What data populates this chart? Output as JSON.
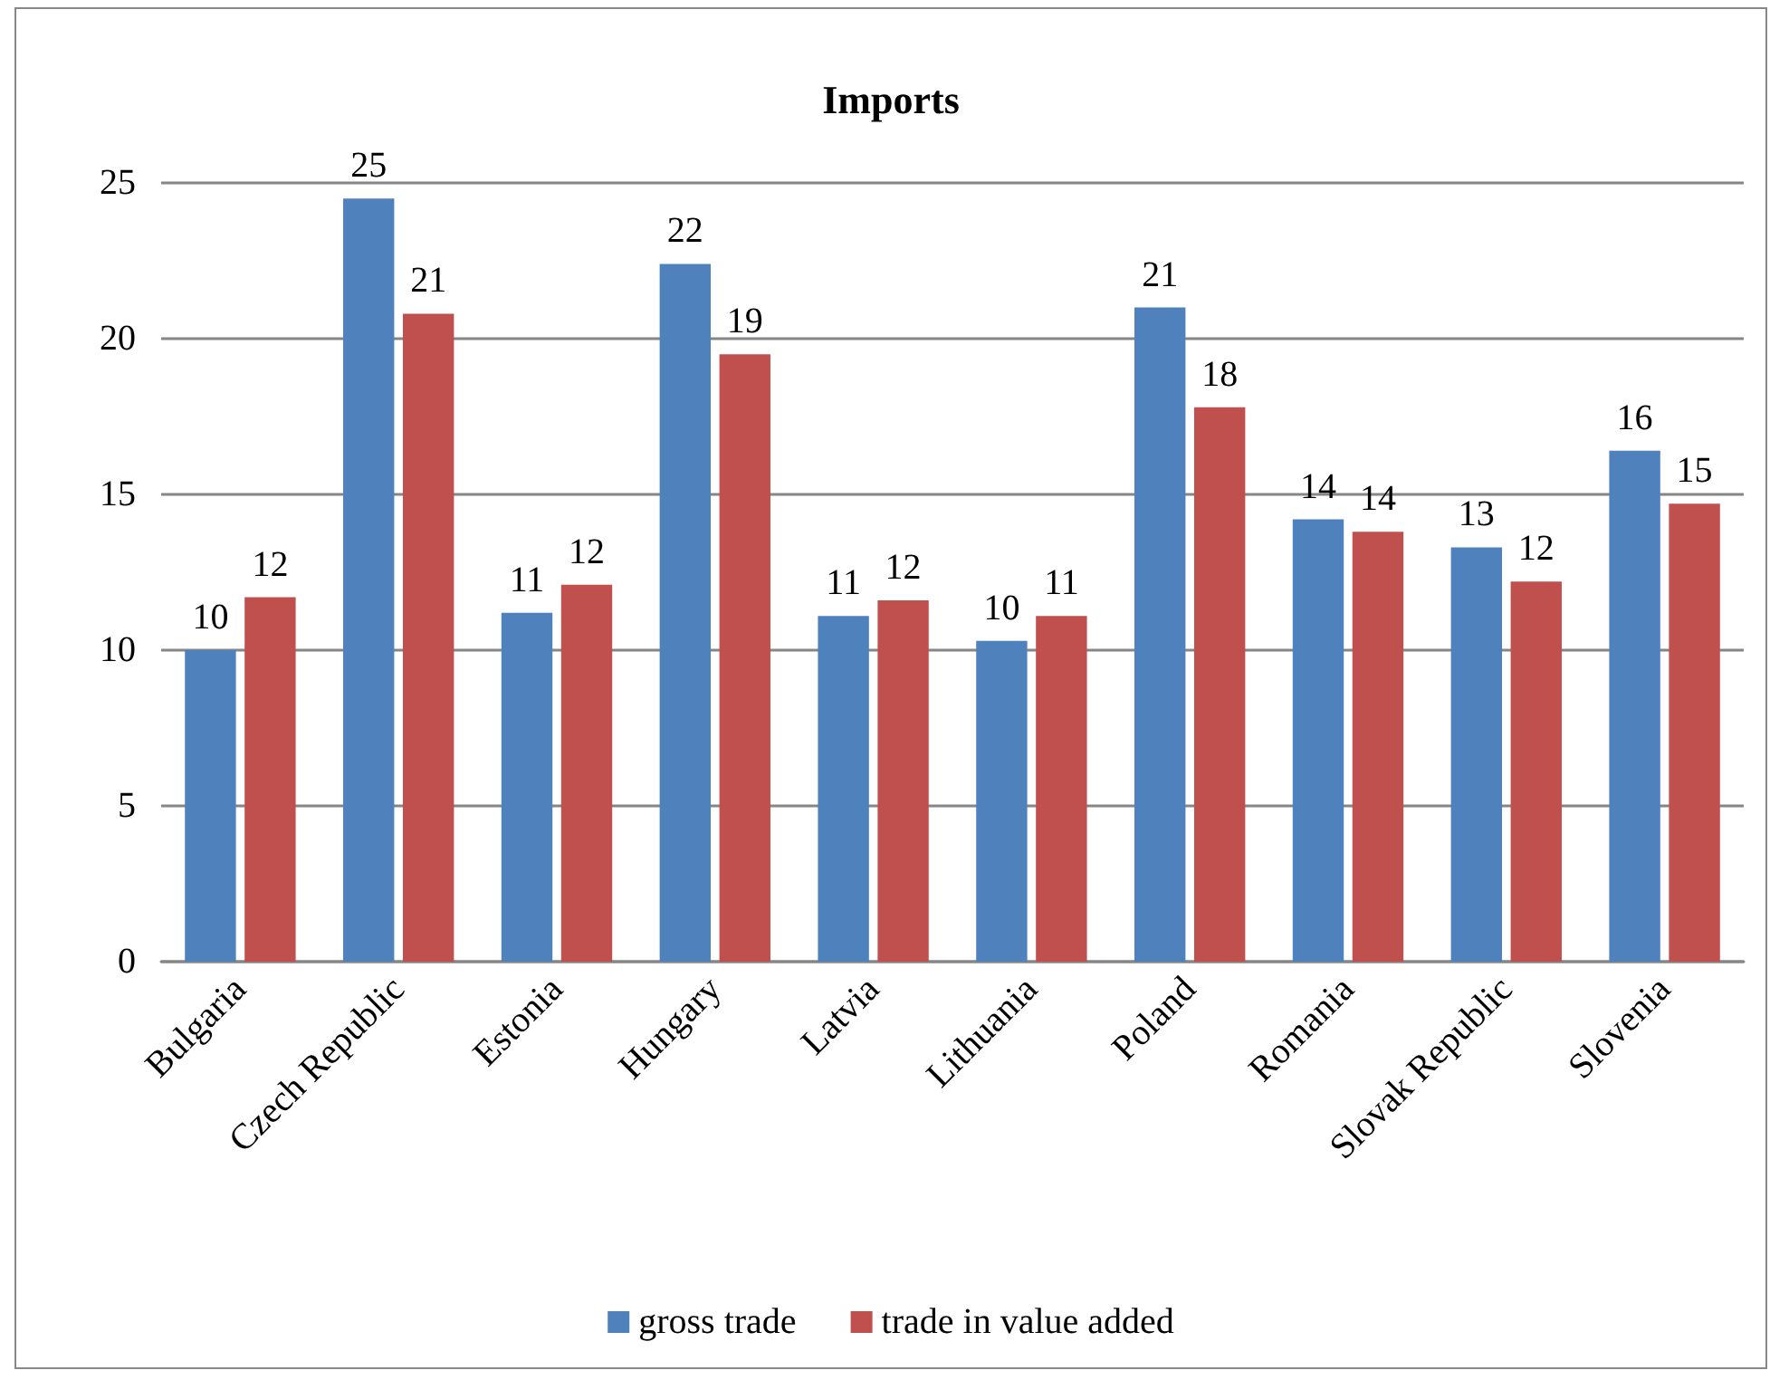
{
  "chart_data": {
    "type": "bar",
    "title": "Imports",
    "categories": [
      "Bulgaria",
      "Czech Republic",
      "Estonia",
      "Hungary",
      "Latvia",
      "Lithuania",
      "Poland",
      "Romania",
      "Slovak Republic",
      "Slovenia"
    ],
    "series": [
      {
        "name": "gross trade",
        "color": "#4f81bd",
        "values": [
          10.0,
          24.5,
          11.2,
          22.4,
          11.1,
          10.3,
          21.0,
          14.2,
          13.3,
          16.4
        ],
        "value_labels": [
          "10",
          "25",
          "11",
          "22",
          "11",
          "10",
          "21",
          "14",
          "13",
          "16"
        ]
      },
      {
        "name": "trade in value added",
        "color": "#c0504d",
        "values": [
          11.7,
          20.8,
          12.1,
          19.5,
          11.6,
          11.1,
          17.8,
          13.8,
          12.2,
          14.7
        ],
        "value_labels": [
          "12",
          "21",
          "12",
          "19",
          "12",
          "11",
          "18",
          "14",
          "12",
          "15"
        ]
      }
    ],
    "ylim": [
      0,
      25
    ],
    "yticks": [
      0,
      5,
      10,
      15,
      20,
      25
    ],
    "grid": "y",
    "legend": "bottom"
  }
}
